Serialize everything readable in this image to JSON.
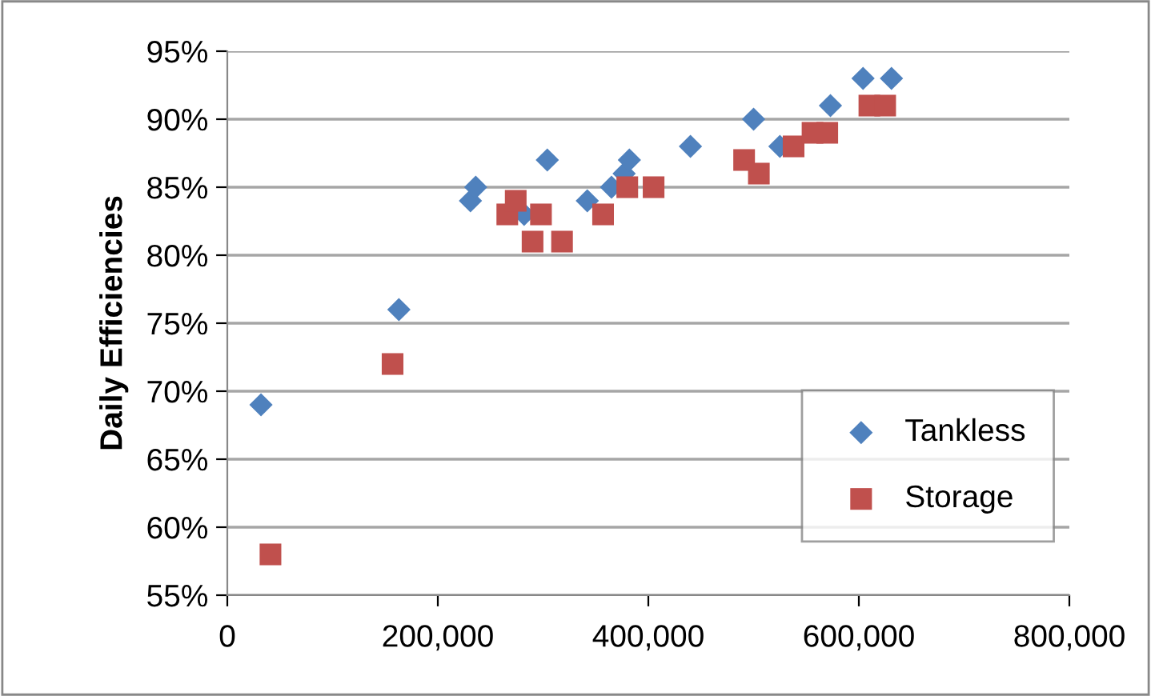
{
  "chart_data": {
    "type": "scatter",
    "ylabel": "Daily Efficiencies",
    "xlim": [
      0,
      800000
    ],
    "xticks": [
      {
        "value": 0,
        "label": "0"
      },
      {
        "value": 200000,
        "label": "200,000"
      },
      {
        "value": 400000,
        "label": "400,000"
      },
      {
        "value": 600000,
        "label": "600,000"
      },
      {
        "value": 800000,
        "label": "800,000"
      }
    ],
    "ylim": [
      0.55,
      0.95
    ],
    "yticks": [
      {
        "value": 0.55,
        "label": "55%"
      },
      {
        "value": 0.6,
        "label": "60%"
      },
      {
        "value": 0.65,
        "label": "65%"
      },
      {
        "value": 0.7,
        "label": "70%"
      },
      {
        "value": 0.75,
        "label": "75%"
      },
      {
        "value": 0.8,
        "label": "80%"
      },
      {
        "value": 0.85,
        "label": "85%"
      },
      {
        "value": 0.9,
        "label": "90%"
      },
      {
        "value": 0.95,
        "label": "95%"
      }
    ],
    "grid": "y",
    "legend": "bottom right",
    "series": [
      {
        "name": "Tankless",
        "color": "#4f81bd",
        "marker": "diamond",
        "x": [
          32000,
          163000,
          231000,
          236000,
          282000,
          304000,
          342000,
          365000,
          377000,
          382000,
          440000,
          500000,
          525000,
          545000,
          573000,
          604000,
          631000
        ],
        "values": [
          0.69,
          0.76,
          0.84,
          0.85,
          0.83,
          0.87,
          0.84,
          0.85,
          0.86,
          0.87,
          0.88,
          0.9,
          0.88,
          null,
          0.91,
          0.93,
          0.93
        ]
      },
      {
        "name": "Storage",
        "color": "#c0504d",
        "marker": "square",
        "x": [
          41000,
          157000,
          266000,
          274000,
          290000,
          298000,
          318000,
          357000,
          380000,
          405000,
          491000,
          505000,
          538000,
          556000,
          570000,
          610000,
          625000
        ],
        "values": [
          0.58,
          0.72,
          0.83,
          0.84,
          0.81,
          0.83,
          0.81,
          0.83,
          0.85,
          0.85,
          0.87,
          0.86,
          0.88,
          0.89,
          0.89,
          0.91,
          0.91
        ]
      }
    ]
  }
}
